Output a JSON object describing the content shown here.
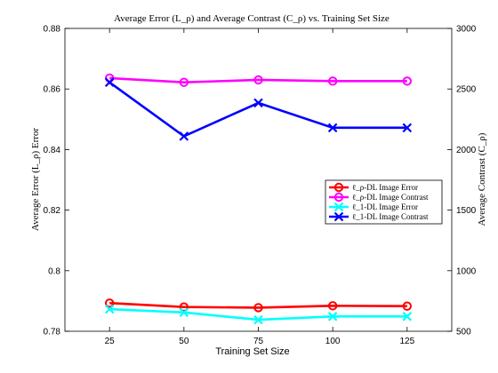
{
  "chart_data": {
    "type": "line",
    "title": "Average Error (L_ρ) and Average Contrast (C_ρ) vs. Training Set Size",
    "xlabel": "Training Set Size",
    "ylabel_left": "Average Error (L_ρ) Error",
    "ylabel_right": "Average Contrast (C_ρ)",
    "x": [
      25,
      50,
      75,
      100,
      125
    ],
    "xlim": [
      10,
      140
    ],
    "ylim_left": [
      0.78,
      0.88
    ],
    "ylim_right": [
      500,
      3000
    ],
    "xticks": [
      "25",
      "50",
      "75",
      "100",
      "125"
    ],
    "yticks_left": [
      "0.78",
      "0.8",
      "0.82",
      "0.84",
      "0.86",
      "0.88"
    ],
    "yticks_right": [
      "500",
      "1000",
      "1500",
      "2000",
      "2500",
      "3000"
    ],
    "legend_position": "right",
    "series": [
      {
        "name": "ℓ_ρ-DL Image Error",
        "axis": "left",
        "color": "#ff0000",
        "marker": "circle",
        "values": [
          0.7893,
          0.788,
          0.7878,
          0.7884,
          0.7883
        ]
      },
      {
        "name": "ℓ_ρ-DL Image Contrast",
        "axis": "right",
        "color": "#ff00ff",
        "marker": "circle",
        "values": [
          2590,
          2555,
          2575,
          2565,
          2565
        ]
      },
      {
        "name": "ℓ_1-DL Image Error",
        "axis": "left",
        "color": "#00ffff",
        "marker": "x",
        "values": [
          0.7873,
          0.7862,
          0.7838,
          0.7849,
          0.7849
        ]
      },
      {
        "name": "ℓ_1-DL Image Contrast",
        "axis": "right",
        "color": "#0000ff",
        "marker": "x",
        "values": [
          2555,
          2110,
          2385,
          2180,
          2180
        ]
      }
    ]
  }
}
